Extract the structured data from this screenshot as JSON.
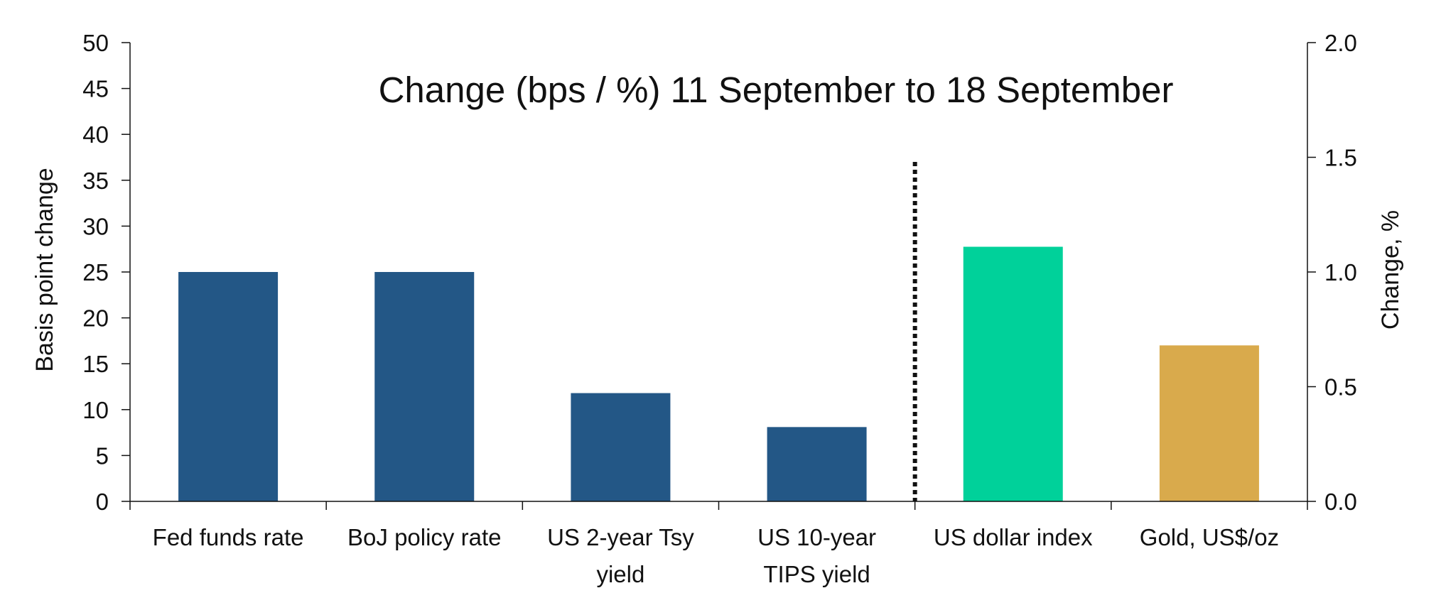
{
  "chart_data": {
    "type": "bar",
    "title": "Change (bps / %) 11 September to 18 September",
    "categories": [
      "Fed funds rate",
      "BoJ policy rate",
      "US 2-year Tsy yield",
      "US 10-year TIPS yield",
      "US dollar index",
      "Gold, US$/oz"
    ],
    "category_lines": [
      [
        "Fed funds rate"
      ],
      [
        "BoJ policy rate"
      ],
      [
        "US 2-year Tsy",
        "yield"
      ],
      [
        "US 10-year",
        "TIPS yield"
      ],
      [
        "US dollar index"
      ],
      [
        "Gold, US$/oz"
      ]
    ],
    "series": [
      {
        "axis": "left",
        "unit": "bps",
        "values": [
          25,
          25,
          11.8,
          8.1,
          null,
          null
        ],
        "color": "#235786"
      },
      {
        "axis": "right",
        "unit": "%",
        "values": [
          null,
          null,
          null,
          null,
          1.11,
          0.68
        ],
        "colors": [
          "#00d19a",
          null,
          null,
          null,
          null,
          "#d9aa4c"
        ]
      }
    ],
    "bar_colors": [
      "#235786",
      "#235786",
      "#235786",
      "#235786",
      "#00d19a",
      "#d9aa4c"
    ],
    "left_axis": {
      "label": "Basis point change",
      "ylim": [
        0,
        50
      ],
      "ticks": [
        "0",
        "5",
        "10",
        "15",
        "20",
        "25",
        "30",
        "35",
        "40",
        "45",
        "50"
      ]
    },
    "right_axis": {
      "label": "Change, %",
      "ylim": [
        0,
        2.0
      ],
      "ticks": [
        "0.0",
        "0.5",
        "1.0",
        "1.5",
        "2.0"
      ]
    },
    "divider": {
      "style": "dotted",
      "between_categories": [
        3,
        4
      ],
      "top_value_left_axis": 37
    },
    "grid": false,
    "legend": "none"
  }
}
